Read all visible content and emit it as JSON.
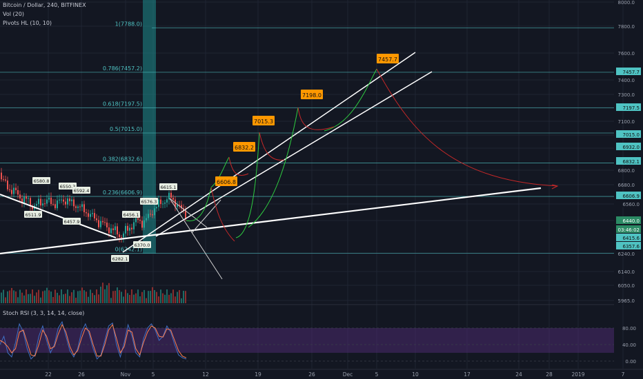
{
  "header": {
    "symbol_line": "Bitcoin / Dollar, 240, BITFINEX",
    "vol_line": "Vol (20)",
    "pivots_line": "Pivots HL (10, 10)"
  },
  "rsi_panel": {
    "label": "Stoch RSI (3, 3, 14, 14, close)"
  },
  "colors": {
    "background": "#131722",
    "up": "#26a69a",
    "down": "#ef5350",
    "fib_line": "#4fc3c3",
    "trend_line": "#ffffff",
    "price_label_bg": "#ff9800",
    "projection_green": "#2ecc40",
    "projection_red": "#c62828",
    "rsi_band": "#4a2a6e",
    "stoch_k": "#3f6fc4",
    "stoch_d": "#ff7f50"
  },
  "chart_data": [
    {
      "type": "candlestick",
      "title": "Bitcoin / Dollar, 240, BITFINEX",
      "x_axis_ticks": [
        "22",
        "26",
        "Nov",
        "5",
        "12",
        "19",
        "26",
        "Dec",
        "5",
        "10",
        "17",
        "24",
        "28",
        "2019",
        "7"
      ],
      "y_axis_ticks": [
        8000.0,
        7800.0,
        7600.0,
        7400.0,
        7300.0,
        7200.0,
        7100.0,
        7000.0,
        6900.0,
        6800.0,
        6680.0,
        6560.0,
        6440.0,
        6240.0,
        6140.0,
        6050.0,
        5965.0
      ],
      "ylim": [
        5965,
        8000
      ],
      "axis_price_labels": [
        "7457.7",
        "7197.5",
        "7015.0",
        "6932.0",
        "6832.1",
        "6606.9",
        "6560.0",
        "6440.0",
        "03:46:02",
        "6415.6",
        "6357.6"
      ],
      "fibonacci": [
        {
          "label": "1(7788.0)",
          "price": 7788.0
        },
        {
          "label": "0.786(7457.2)",
          "price": 7457.2
        },
        {
          "label": "0.618(7197.5)",
          "price": 7197.5
        },
        {
          "label": "0.5(7015.0)",
          "price": 7015.0
        },
        {
          "label": "0.382(6832.6)",
          "price": 6832.6
        },
        {
          "label": "0.236(6606.9)",
          "price": 6606.9
        },
        {
          "label": "0(6242.1)",
          "price": 6242.1
        }
      ],
      "projection_targets": [
        "6606.8",
        "6832.2",
        "7015.3",
        "7198.0",
        "7457.7"
      ],
      "pivot_labels": [
        "6580.8",
        "6511.9",
        "6550.3",
        "6592.4",
        "6457.9",
        "6456.1",
        "6576.3",
        "6615.1",
        "6370.0",
        "6282.1"
      ],
      "grid": true
    },
    {
      "type": "line",
      "title": "Stoch RSI (3, 3, 14, 14, close)",
      "y_axis_ticks": [
        80.0,
        40.0,
        0.0
      ],
      "ylim": [
        0,
        100
      ],
      "band": [
        20,
        80
      ],
      "series": [
        {
          "values": [
            40,
            60,
            20,
            10,
            45,
            90,
            70,
            30,
            5,
            15,
            60,
            85,
            50,
            20,
            40,
            80,
            95,
            60,
            25,
            10,
            30,
            70,
            90,
            65,
            30,
            5,
            15,
            50,
            85,
            92,
            40,
            10,
            45,
            88,
            60,
            20,
            10,
            55,
            80,
            90,
            75,
            50,
            60,
            85,
            70,
            40,
            15,
            8,
            5
          ]
        },
        {
          "values": [
            50,
            45,
            35,
            20,
            30,
            70,
            75,
            45,
            15,
            12,
            40,
            75,
            60,
            30,
            35,
            65,
            88,
            70,
            35,
            15,
            25,
            55,
            80,
            72,
            40,
            12,
            12,
            40,
            75,
            88,
            55,
            20,
            35,
            75,
            70,
            30,
            15,
            45,
            70,
            85,
            80,
            60,
            58,
            78,
            75,
            50,
            25,
            12,
            8
          ]
        }
      ]
    }
  ]
}
